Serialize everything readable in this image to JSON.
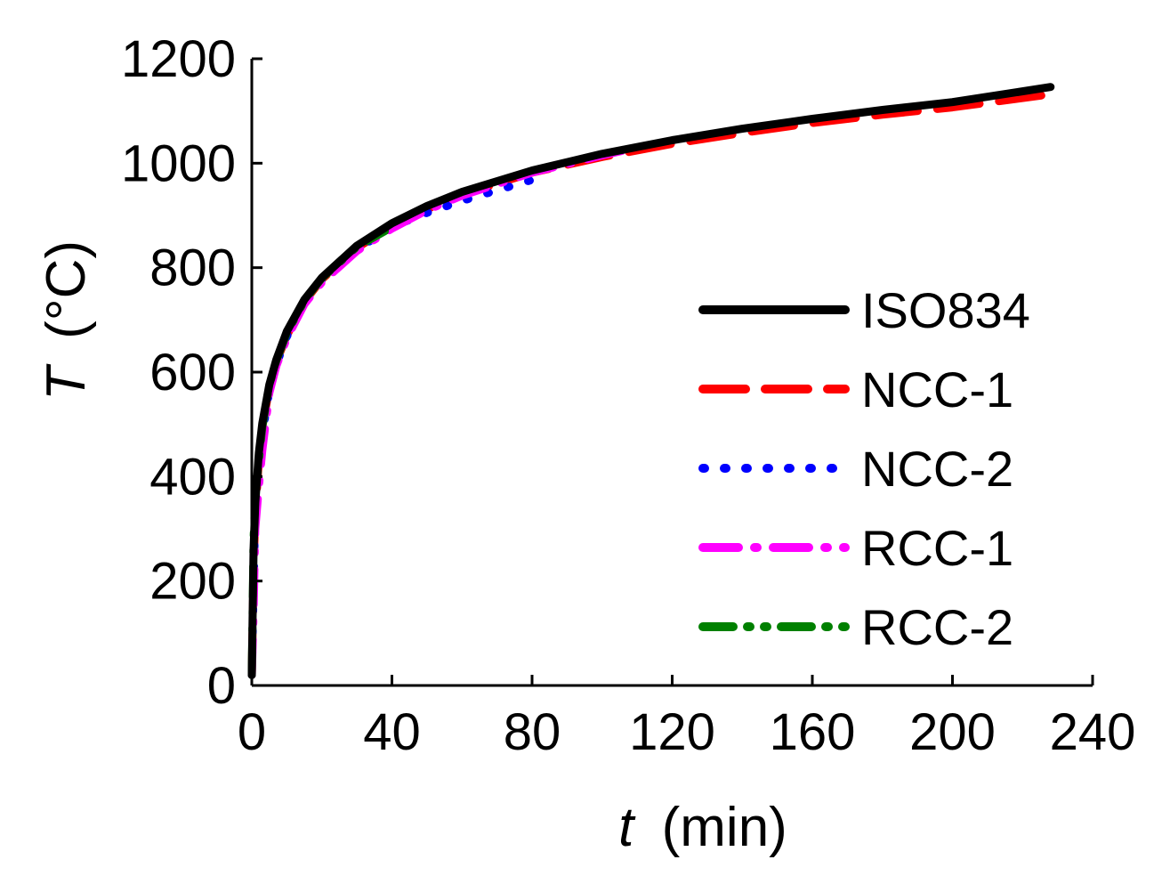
{
  "chart_data": {
    "type": "line",
    "title": "",
    "xlabel": {
      "var": "t",
      "unit": "(min)"
    },
    "ylabel": {
      "var": "T",
      "unit": "(°C)"
    },
    "xlim": [
      0,
      240
    ],
    "ylim": [
      0,
      1200
    ],
    "xticks": [
      0,
      40,
      80,
      120,
      160,
      200,
      240
    ],
    "yticks": [
      0,
      200,
      400,
      600,
      800,
      1000,
      1200
    ],
    "grid": false,
    "legend_position": "right",
    "series": [
      {
        "name": "ISO834",
        "color": "#000000",
        "style": "solid",
        "x": [
          0,
          0.5,
          1,
          2,
          3,
          5,
          7,
          10,
          15,
          20,
          30,
          40,
          50,
          60,
          80,
          100,
          120,
          140,
          160,
          180,
          200,
          228
        ],
        "y": [
          20,
          261,
          349,
          445,
          502,
          576,
          624,
          678,
          739,
          781,
          842,
          885,
          918,
          945,
          986,
          1018,
          1044,
          1066,
          1085,
          1102,
          1117,
          1146
        ]
      },
      {
        "name": "NCC-1",
        "color": "#ff0000",
        "style": "dashed",
        "x": [
          0,
          0.5,
          1,
          2,
          3,
          5,
          7,
          10,
          15,
          20,
          30,
          40,
          50,
          60,
          80,
          100,
          120,
          140,
          160,
          180,
          200,
          228
        ],
        "y": [
          20,
          220,
          330,
          430,
          495,
          570,
          620,
          670,
          735,
          778,
          838,
          880,
          912,
          940,
          982,
          1012,
          1037,
          1058,
          1077,
          1093,
          1107,
          1132
        ]
      },
      {
        "name": "NCC-2",
        "color": "#0000ff",
        "style": "dotted",
        "x": [
          0,
          0.5,
          1,
          2,
          3,
          5,
          7,
          10,
          15,
          20,
          30,
          40,
          50,
          60,
          70,
          80
        ],
        "y": [
          20,
          180,
          340,
          420,
          480,
          565,
          615,
          668,
          732,
          775,
          835,
          878,
          905,
          928,
          948,
          968
        ]
      },
      {
        "name": "RCC-1",
        "color": "#ff00ff",
        "style": "dashdot",
        "x": [
          0,
          0.5,
          1,
          2,
          3,
          5,
          7,
          10,
          15,
          20,
          30,
          40,
          50,
          60,
          80,
          100,
          110
        ],
        "y": [
          20,
          140,
          300,
          380,
          450,
          560,
          612,
          665,
          730,
          772,
          832,
          875,
          910,
          938,
          982,
          1015,
          1030
        ]
      },
      {
        "name": "RCC-2",
        "color": "#008000",
        "style": "dashdotdot",
        "x": [
          0,
          0.5,
          1,
          2,
          3,
          5,
          7,
          10,
          15,
          20,
          30,
          38
        ],
        "y": [
          20,
          280,
          360,
          430,
          495,
          575,
          622,
          675,
          737,
          780,
          840,
          870
        ]
      }
    ]
  }
}
